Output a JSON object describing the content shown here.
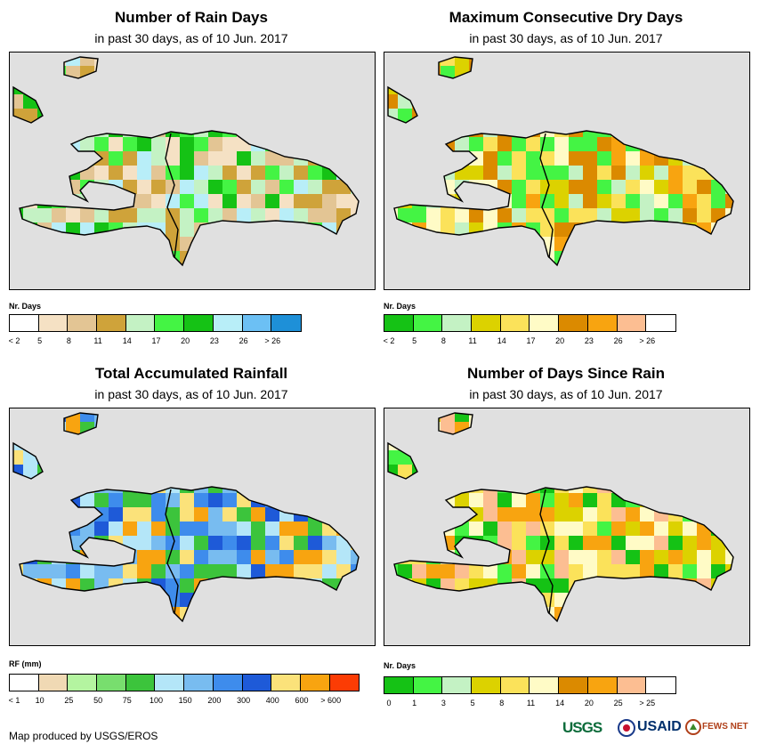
{
  "colors": {
    "ocean": "#e0e0e0",
    "outline": "#000000",
    "frame": "#000000"
  },
  "panels": [
    {
      "id": "rain-days",
      "title": "Number of Rain Days",
      "subtitle": "in past 30 days, as of 10 Jun. 2017",
      "legend_title": "Nr. Days",
      "legend_colors": [
        "#ffffff",
        "#f5e1c4",
        "#e3c594",
        "#cfa33a",
        "#c4f2c4",
        "#44f444",
        "#15c215",
        "#b8eef8",
        "#6cc0f4",
        "#1e90d8"
      ],
      "legend_labels": [
        "< 2",
        "5",
        "8",
        "11",
        "14",
        "17",
        "20",
        "23",
        "26",
        "> 26"
      ]
    },
    {
      "id": "max-dry-days",
      "title": "Maximum Consecutive Dry Days",
      "subtitle": "in past 30 days, as of 10 Jun. 2017",
      "legend_title": "Nr. Days",
      "legend_colors": [
        "#15c215",
        "#44f444",
        "#c4f2c4",
        "#dcd200",
        "#fbe25a",
        "#fffbc6",
        "#db8a00",
        "#f8a410",
        "#fcbe92",
        "#ffffff"
      ],
      "legend_labels": [
        "< 2",
        "5",
        "8",
        "11",
        "14",
        "17",
        "20",
        "23",
        "26",
        "> 26"
      ]
    },
    {
      "id": "total-rainfall",
      "title": "Total Accumulated Rainfall",
      "subtitle": "in past 30 days, as of 10 Jun. 2017",
      "legend_title": "RF (mm)",
      "legend_colors": [
        "#ffffff",
        "#f0d9b4",
        "#b4f4a0",
        "#78de6e",
        "#3cc43c",
        "#b4e6f8",
        "#78bcf0",
        "#3e8cec",
        "#1e5ad8",
        "#fbe27a",
        "#f8a410",
        "#fc3c04"
      ],
      "legend_labels": [
        "< 1",
        "10",
        "25",
        "50",
        "75",
        "100",
        "150",
        "200",
        "300",
        "400",
        "600",
        "> 600"
      ]
    },
    {
      "id": "days-since-rain",
      "title": "Number of Days Since Rain",
      "subtitle": "in past 30 days, as of 10 Jun. 2017",
      "legend_title": "Nr. Days",
      "legend_colors": [
        "#15c215",
        "#44f444",
        "#c4f2c4",
        "#dcd200",
        "#fbe25a",
        "#fffbc6",
        "#db8a00",
        "#f8a410",
        "#fcbe92",
        "#ffffff"
      ],
      "legend_labels": [
        "0",
        "1",
        "3",
        "5",
        "8",
        "11",
        "14",
        "20",
        "25",
        "> 25"
      ]
    }
  ],
  "footer": {
    "credit": "Map produced by USGS/EROS"
  },
  "logos": {
    "usgs": "USGS",
    "usaid": "USAID",
    "fewsnet": "FEWS NET"
  }
}
